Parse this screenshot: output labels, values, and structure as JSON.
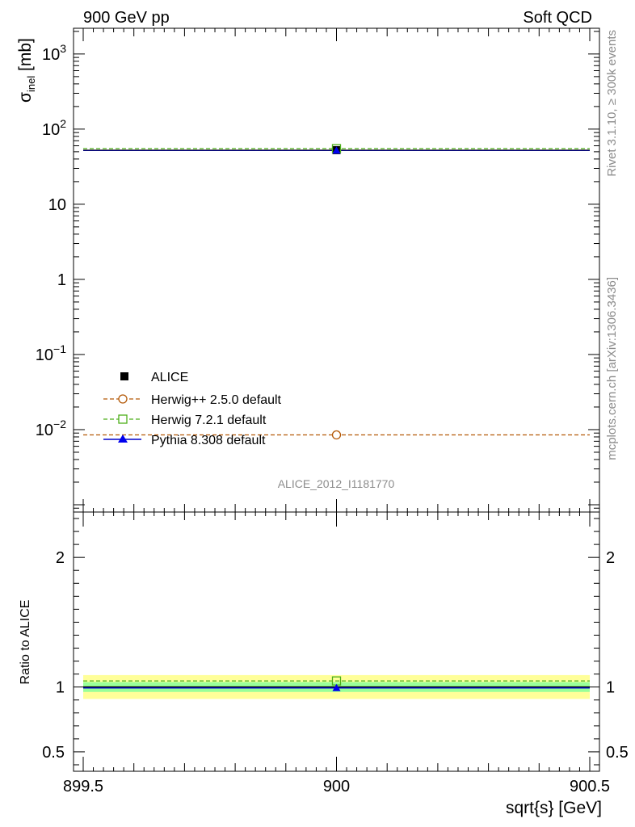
{
  "header": {
    "left_title": "900 GeV pp",
    "right_title": "Soft QCD"
  },
  "side": {
    "rivet_label": "Rivet 3.1.10, ≥ 300k events",
    "mcplots_label": "mcplots.cern.ch [arXiv:1306.3436]"
  },
  "watermark": "ALICE_2012_I1181770",
  "chart_data": [
    {
      "panel": "main",
      "type": "scatter",
      "y_scale": "log",
      "ylabel_base": "σ",
      "ylabel_sub": "inel",
      "ylabel_unit": " [mb]",
      "xlim": [
        899.5,
        900.5
      ],
      "ylim": [
        0.0008,
        2200
      ],
      "y_ticks": [
        {
          "v": 1000,
          "base": "10",
          "exp": "3"
        },
        {
          "v": 100,
          "base": "10",
          "exp": "2"
        },
        {
          "v": 10,
          "base": "10",
          "exp": ""
        },
        {
          "v": 1,
          "base": "1",
          "exp": ""
        },
        {
          "v": 0.1,
          "base": "10",
          "exp": "−1"
        },
        {
          "v": 0.01,
          "base": "10",
          "exp": "−2"
        }
      ],
      "series": [
        {
          "name": "ALICE",
          "type": "data",
          "x": 900,
          "y": 52.5,
          "color": "#000000",
          "marker": "square"
        },
        {
          "name": "Herwig++ 2.5.0 default",
          "type": "mc",
          "x": 900,
          "y": 0.0085,
          "color": "#b35806",
          "marker": "open-circle",
          "dash": true
        },
        {
          "name": "Herwig 7.2.1 default",
          "type": "mc",
          "x": 900,
          "y": 55.0,
          "color": "#4daf1a",
          "marker": "open-square",
          "dash": true
        },
        {
          "name": "Pythia 8.308 default",
          "type": "mc",
          "x": 900,
          "y": 52.1,
          "color": "#0000cc",
          "marker": "triangle",
          "dash": false
        }
      ]
    },
    {
      "panel": "ratio",
      "type": "scatter",
      "ylabel": "Ratio to ALICE",
      "xlabel": "sqrt{s} [GeV]",
      "xlim": [
        899.5,
        900.5
      ],
      "ylim": [
        0.35,
        2.35
      ],
      "x_ticks": [
        "899.5",
        "900",
        "900.5"
      ],
      "y_ticks": [
        "0.5",
        "1",
        "2"
      ],
      "bands": {
        "stat_low": 0.962,
        "stat_high": 1.038,
        "total_low": 0.908,
        "total_high": 1.092
      },
      "ratios": [
        {
          "name": "Herwig 7.2.1 default",
          "x": 900,
          "y": 1.047
        },
        {
          "name": "Pythia 8.308 default",
          "x": 900,
          "y": 0.993
        }
      ]
    }
  ]
}
